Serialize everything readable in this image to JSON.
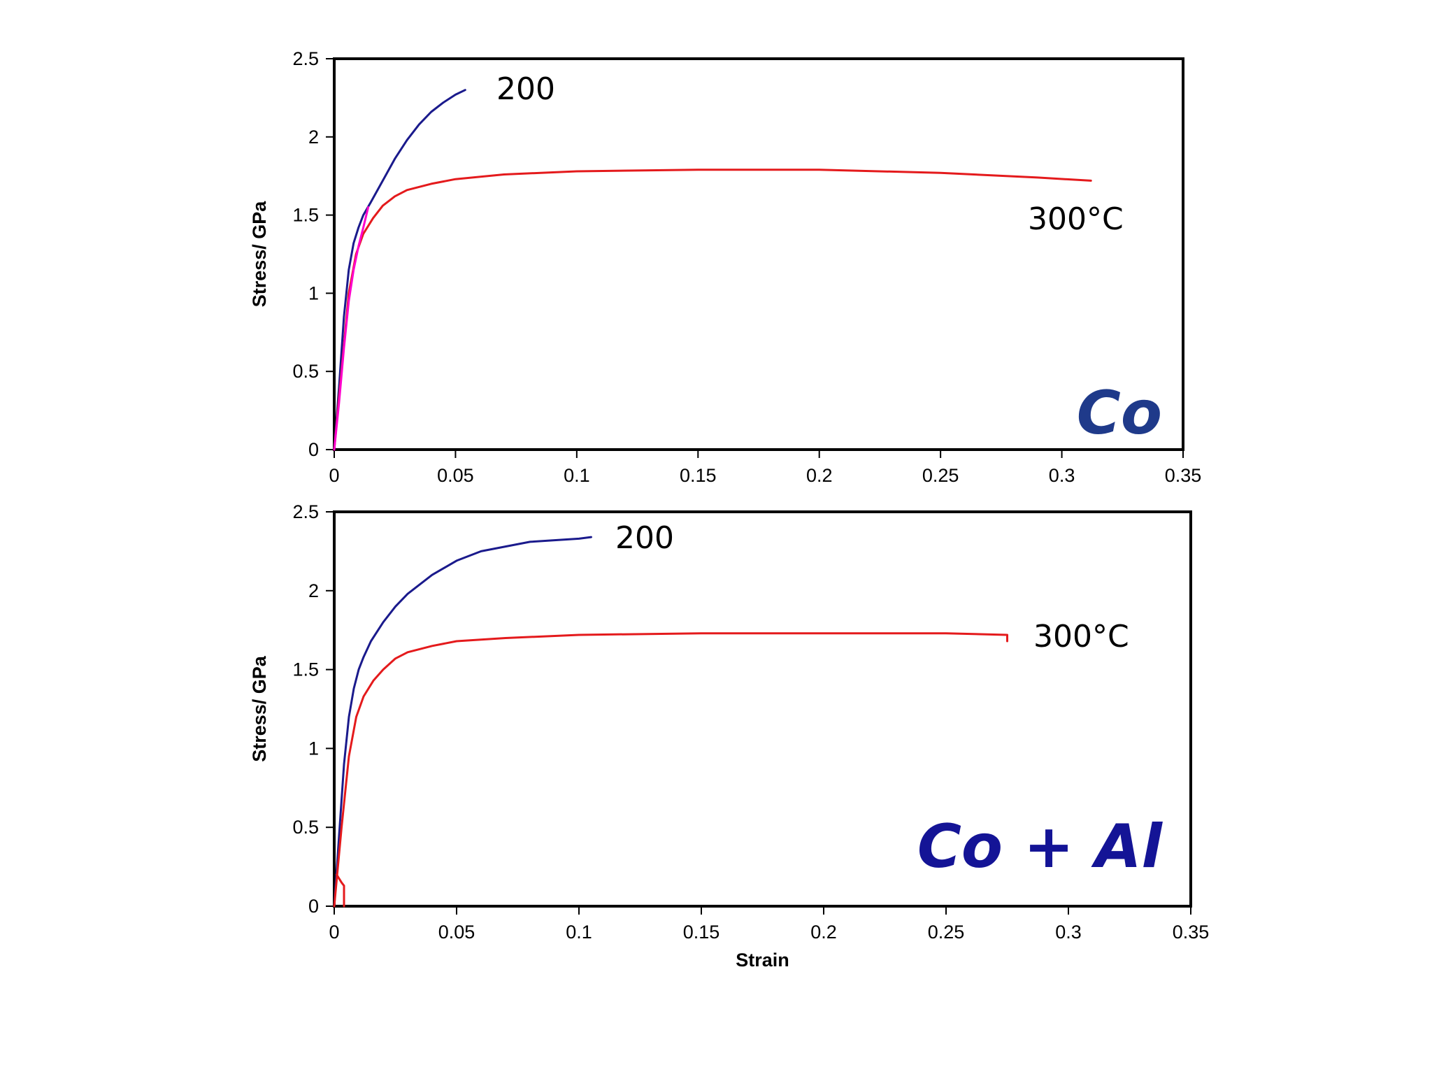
{
  "chart_data": [
    {
      "type": "line",
      "title": "",
      "xlabel": "",
      "ylabel": "Stress/ GPa",
      "xlim": [
        0,
        0.35
      ],
      "ylim": [
        0,
        2.5
      ],
      "x_ticks": [
        "0",
        "0.05",
        "0.1",
        "0.15",
        "0.2",
        "0.25",
        "0.3",
        "0.35"
      ],
      "y_ticks": [
        "0",
        "0.5",
        "1",
        "1.5",
        "2",
        "2.5"
      ],
      "material_label": "Co",
      "material_color": "#1f3a8a",
      "series": [
        {
          "name": "200",
          "color": "#1a1a8c",
          "x": [
            0,
            0.002,
            0.004,
            0.006,
            0.008,
            0.01,
            0.012,
            0.015,
            0.02,
            0.025,
            0.03,
            0.035,
            0.04,
            0.045,
            0.05,
            0.054
          ],
          "y": [
            0,
            0.4,
            0.85,
            1.15,
            1.32,
            1.42,
            1.5,
            1.58,
            1.72,
            1.86,
            1.98,
            2.08,
            2.16,
            2.22,
            2.27,
            2.3
          ]
        },
        {
          "name": "300°C",
          "color": "#e41a1c",
          "x": [
            0,
            0.003,
            0.006,
            0.009,
            0.012,
            0.016,
            0.02,
            0.025,
            0.03,
            0.04,
            0.05,
            0.07,
            0.1,
            0.15,
            0.2,
            0.25,
            0.29,
            0.312
          ],
          "y": [
            0,
            0.5,
            1.0,
            1.25,
            1.38,
            1.48,
            1.56,
            1.62,
            1.66,
            1.7,
            1.73,
            1.76,
            1.78,
            1.79,
            1.79,
            1.77,
            1.74,
            1.72
          ]
        },
        {
          "name": "",
          "color": "#ff00cc",
          "x": [
            0,
            0.002,
            0.004,
            0.006,
            0.008,
            0.01,
            0.012,
            0.014
          ],
          "y": [
            0,
            0.3,
            0.65,
            0.95,
            1.15,
            1.3,
            1.42,
            1.55
          ]
        }
      ]
    },
    {
      "type": "line",
      "title": "",
      "xlabel": "Strain",
      "ylabel": "Stress/ GPa",
      "xlim": [
        0,
        0.35
      ],
      "ylim": [
        0,
        2.5
      ],
      "x_ticks": [
        "0",
        "0.05",
        "0.1",
        "0.15",
        "0.2",
        "0.25",
        "0.3",
        "0.35"
      ],
      "y_ticks": [
        "0",
        "0.5",
        "1",
        "1.5",
        "2",
        "2.5"
      ],
      "material_label": "Co + Al",
      "material_color": "#141496",
      "series": [
        {
          "name": "200",
          "color": "#1a1a8c",
          "x": [
            0,
            0.002,
            0.004,
            0.006,
            0.008,
            0.01,
            0.012,
            0.015,
            0.02,
            0.025,
            0.03,
            0.04,
            0.05,
            0.06,
            0.07,
            0.08,
            0.09,
            0.1,
            0.105
          ],
          "y": [
            0,
            0.45,
            0.9,
            1.2,
            1.38,
            1.5,
            1.58,
            1.68,
            1.8,
            1.9,
            1.98,
            2.1,
            2.19,
            2.25,
            2.28,
            2.31,
            2.32,
            2.33,
            2.34
          ]
        },
        {
          "name": "300°C",
          "color": "#e41a1c",
          "x": [
            0,
            0.003,
            0.006,
            0.009,
            0.012,
            0.016,
            0.02,
            0.025,
            0.03,
            0.04,
            0.05,
            0.07,
            0.1,
            0.15,
            0.2,
            0.25,
            0.275,
            0.275
          ],
          "y": [
            0,
            0.5,
            0.95,
            1.2,
            1.33,
            1.43,
            1.5,
            1.57,
            1.61,
            1.65,
            1.68,
            1.7,
            1.72,
            1.73,
            1.73,
            1.73,
            1.72,
            1.68
          ]
        },
        {
          "name": "",
          "color": "#e41a1c",
          "x": [
            0.001,
            0.003,
            0.004,
            0.004
          ],
          "y": [
            0.2,
            0.15,
            0.13,
            0.0
          ]
        }
      ]
    }
  ]
}
